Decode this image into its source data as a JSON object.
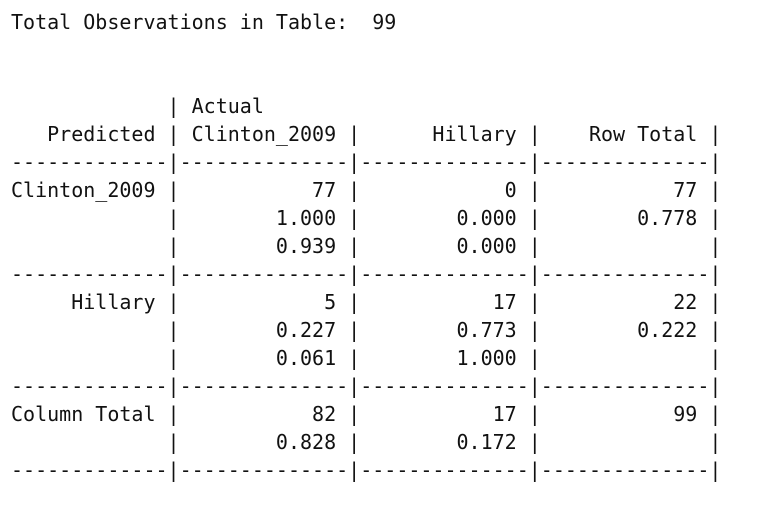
{
  "header": {
    "total_observations": "Total Observations in Table:  99"
  },
  "table": {
    "lines": [
      "",
      "",
      "",
      "             | Actual        ",
      "   Predicted | Clinton_2009 |      Hillary |    Row Total |",
      "-------------|--------------|--------------|--------------|",
      "Clinton_2009 |           77 |            0 |           77 |",
      "             |        1.000 |        0.000 |        0.778 |",
      "             |        0.939 |        0.000 |              |",
      "-------------|--------------|--------------|--------------|",
      "     Hillary |            5 |           17 |           22 |",
      "             |        0.227 |        0.773 |        0.222 |",
      "             |        0.061 |        1.000 |              |",
      "-------------|--------------|--------------|--------------|",
      "Column Total |           82 |           17 |           99 |",
      "             |        0.828 |        0.172 |              |",
      "-------------|--------------|--------------|--------------|"
    ]
  }
}
